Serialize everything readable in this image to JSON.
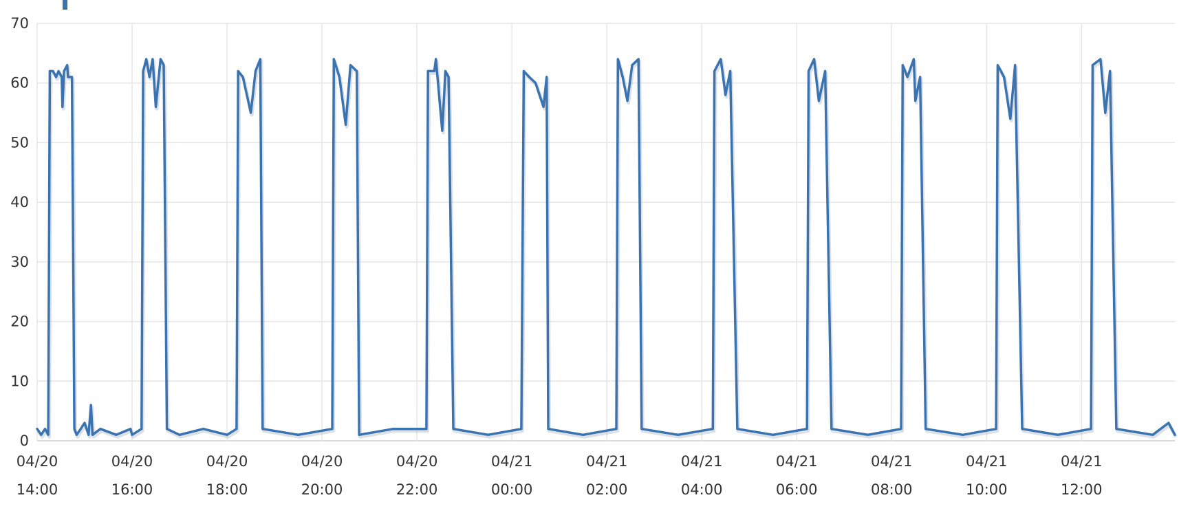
{
  "chart_data": {
    "type": "line",
    "title": "",
    "xlabel": "",
    "ylabel": "",
    "ylim": [
      0,
      70
    ],
    "y_ticks": [
      0,
      10,
      20,
      30,
      40,
      50,
      60,
      70
    ],
    "xlim": [
      "04/20 14:00",
      "04/21 13:58"
    ],
    "x_ticks": [
      {
        "date": "04/20",
        "time": "14:00"
      },
      {
        "date": "04/20",
        "time": "16:00"
      },
      {
        "date": "04/20",
        "time": "18:00"
      },
      {
        "date": "04/20",
        "time": "20:00"
      },
      {
        "date": "04/20",
        "time": "22:00"
      },
      {
        "date": "04/21",
        "time": "00:00"
      },
      {
        "date": "04/21",
        "time": "02:00"
      },
      {
        "date": "04/21",
        "time": "04:00"
      },
      {
        "date": "04/21",
        "time": "06:00"
      },
      {
        "date": "04/21",
        "time": "08:00"
      },
      {
        "date": "04/21",
        "time": "10:00"
      },
      {
        "date": "04/21",
        "time": "12:00"
      }
    ],
    "grid": true,
    "legend": "none",
    "series_color": "#3a73b0",
    "series": [
      {
        "values": [
          [
            "04/20 14:00",
            2
          ],
          [
            "04/20 14:05",
            1
          ],
          [
            "04/20 14:10",
            2
          ],
          [
            "04/20 14:14",
            1
          ],
          [
            "04/20 14:16",
            62
          ],
          [
            "04/20 14:20",
            62
          ],
          [
            "04/20 14:24",
            61
          ],
          [
            "04/20 14:27",
            62
          ],
          [
            "04/20 14:31",
            61
          ],
          [
            "04/20 14:32",
            56
          ],
          [
            "04/20 14:34",
            62
          ],
          [
            "04/20 14:38",
            63
          ],
          [
            "04/20 14:39",
            61
          ],
          [
            "04/20 14:44",
            61
          ],
          [
            "04/20 14:47",
            2
          ],
          [
            "04/20 14:50",
            1
          ],
          [
            "04/20 14:55",
            2
          ],
          [
            "04/20 15:00",
            3
          ],
          [
            "04/20 15:05",
            1
          ],
          [
            "04/20 15:08",
            6
          ],
          [
            "04/20 15:10",
            1
          ],
          [
            "04/20 15:20",
            2
          ],
          [
            "04/20 15:40",
            1
          ],
          [
            "04/20 15:58",
            2
          ],
          [
            "04/20 16:00",
            1
          ],
          [
            "04/20 16:12",
            2
          ],
          [
            "04/20 16:14",
            62
          ],
          [
            "04/20 16:18",
            64
          ],
          [
            "04/20 16:22",
            61
          ],
          [
            "04/20 16:26",
            64
          ],
          [
            "04/20 16:30",
            56
          ],
          [
            "04/20 16:36",
            64
          ],
          [
            "04/20 16:40",
            63
          ],
          [
            "04/20 16:44",
            2
          ],
          [
            "04/20 17:00",
            1
          ],
          [
            "04/20 17:30",
            2
          ],
          [
            "04/20 18:00",
            1
          ],
          [
            "04/20 18:12",
            2
          ],
          [
            "04/20 18:14",
            62
          ],
          [
            "04/20 18:20",
            61
          ],
          [
            "04/20 18:30",
            55
          ],
          [
            "04/20 18:36",
            62
          ],
          [
            "04/20 18:42",
            64
          ],
          [
            "04/20 18:45",
            2
          ],
          [
            "04/20 19:30",
            1
          ],
          [
            "04/20 20:13",
            2
          ],
          [
            "04/20 20:15",
            64
          ],
          [
            "04/20 20:22",
            61
          ],
          [
            "04/20 20:30",
            53
          ],
          [
            "04/20 20:36",
            63
          ],
          [
            "04/20 20:44",
            62
          ],
          [
            "04/20 20:47",
            1
          ],
          [
            "04/20 21:30",
            2
          ],
          [
            "04/20 22:12",
            2
          ],
          [
            "04/20 22:14",
            62
          ],
          [
            "04/20 22:22",
            62
          ],
          [
            "04/20 22:24",
            64
          ],
          [
            "04/20 22:32",
            52
          ],
          [
            "04/20 22:36",
            62
          ],
          [
            "04/20 22:40",
            61
          ],
          [
            "04/20 22:46",
            2
          ],
          [
            "04/20 23:30",
            1
          ],
          [
            "04/21 00:12",
            2
          ],
          [
            "04/21 00:15",
            62
          ],
          [
            "04/21 00:22",
            61
          ],
          [
            "04/21 00:30",
            60
          ],
          [
            "04/21 00:40",
            56
          ],
          [
            "04/21 00:44",
            61
          ],
          [
            "04/21 00:46",
            2
          ],
          [
            "04/21 01:30",
            1
          ],
          [
            "04/21 02:12",
            2
          ],
          [
            "04/21 02:14",
            64
          ],
          [
            "04/21 02:20",
            61
          ],
          [
            "04/21 02:26",
            57
          ],
          [
            "04/21 02:32",
            63
          ],
          [
            "04/21 02:40",
            64
          ],
          [
            "04/21 02:44",
            2
          ],
          [
            "04/21 03:30",
            1
          ],
          [
            "04/21 04:14",
            2
          ],
          [
            "04/21 04:16",
            62
          ],
          [
            "04/21 04:24",
            64
          ],
          [
            "04/21 04:30",
            58
          ],
          [
            "04/21 04:36",
            62
          ],
          [
            "04/21 04:45",
            2
          ],
          [
            "04/21 05:30",
            1
          ],
          [
            "04/21 06:13",
            2
          ],
          [
            "04/21 06:15",
            62
          ],
          [
            "04/21 06:22",
            64
          ],
          [
            "04/21 06:28",
            57
          ],
          [
            "04/21 06:36",
            62
          ],
          [
            "04/21 06:44",
            2
          ],
          [
            "04/21 07:30",
            1
          ],
          [
            "04/21 08:12",
            2
          ],
          [
            "04/21 08:14",
            63
          ],
          [
            "04/21 08:20",
            61
          ],
          [
            "04/21 08:28",
            64
          ],
          [
            "04/21 08:30",
            57
          ],
          [
            "04/21 08:36",
            61
          ],
          [
            "04/21 08:43",
            2
          ],
          [
            "04/21 09:30",
            1
          ],
          [
            "04/21 10:12",
            2
          ],
          [
            "04/21 10:14",
            63
          ],
          [
            "04/21 10:22",
            61
          ],
          [
            "04/21 10:30",
            54
          ],
          [
            "04/21 10:36",
            63
          ],
          [
            "04/21 10:45",
            2
          ],
          [
            "04/21 11:30",
            1
          ],
          [
            "04/21 12:12",
            2
          ],
          [
            "04/21 12:14",
            63
          ],
          [
            "04/21 12:24",
            64
          ],
          [
            "04/21 12:30",
            55
          ],
          [
            "04/21 12:36",
            62
          ],
          [
            "04/21 12:44",
            2
          ],
          [
            "04/21 13:30",
            1
          ],
          [
            "04/21 13:50",
            3
          ],
          [
            "04/21 13:58",
            1
          ]
        ]
      }
    ]
  }
}
